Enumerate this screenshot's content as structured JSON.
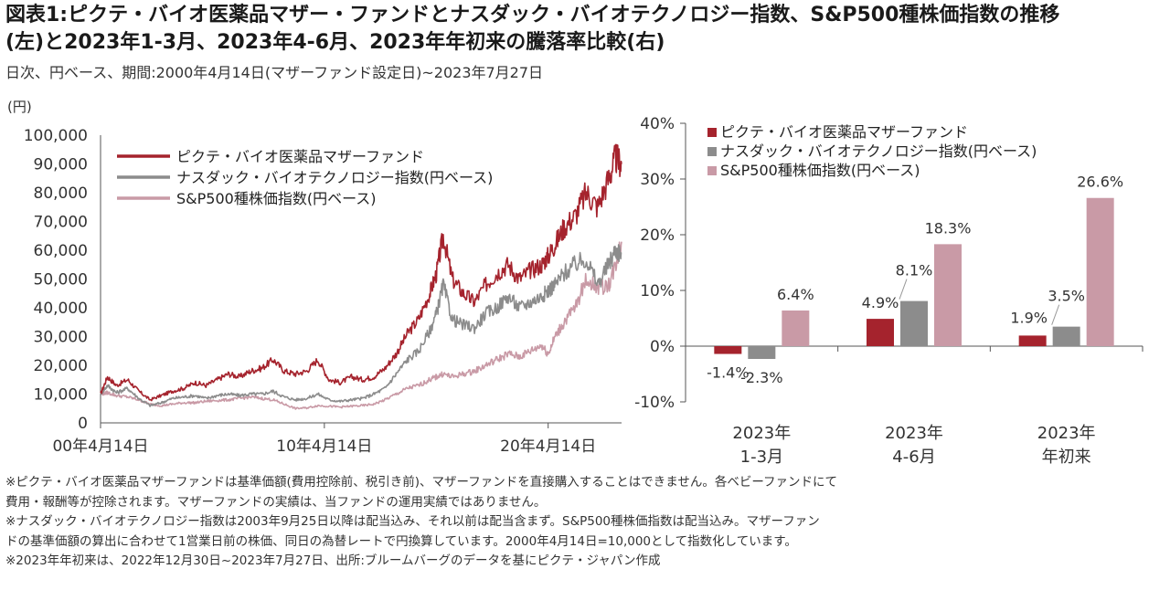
{
  "header": {
    "title_line1": "図表1:ピクテ・バイオ医薬品マザー・ファンドとナスダック・バイオテクノロジー指数、S&P500種株価指数の推移",
    "title_line2": "(左)と2023年1-3月、2023年4-6月、2023年年初来の騰落率比較(右)",
    "subtitle": "日次、円ベース、期間:2000年4月14日(マザーファンド設定日)~2023年7月27日"
  },
  "colors": {
    "fund": "#a5232d",
    "nasdaq": "#8c8c8c",
    "sp500": "#c99aa6",
    "axis": "#555555",
    "text": "#333333"
  },
  "chart_data": [
    {
      "type": "line",
      "ylabel": "(円)",
      "ylim": [
        0,
        100000
      ],
      "yticks": [
        "0",
        "10,000",
        "20,000",
        "30,000",
        "40,000",
        "50,000",
        "60,000",
        "70,000",
        "80,000",
        "90,000",
        "100,000"
      ],
      "xlim": [
        2000.29,
        2023.57
      ],
      "xticks": [
        {
          "x": 2000.29,
          "label": "00年4月14日"
        },
        {
          "x": 2010.29,
          "label": "10年4月14日"
        },
        {
          "x": 2020.29,
          "label": "20年4月14日"
        }
      ],
      "legend_position": "top-left",
      "series": [
        {
          "name": "ピクテ・バイオ医薬品マザーファンド",
          "x": [
            2000.29,
            2000.6,
            2001.0,
            2001.5,
            2002.0,
            2002.5,
            2003.0,
            2003.5,
            2004.0,
            2004.5,
            2005.0,
            2005.5,
            2006.0,
            2006.5,
            2007.0,
            2007.5,
            2008.0,
            2008.5,
            2009.0,
            2009.5,
            2010.0,
            2010.5,
            2011.0,
            2011.5,
            2012.0,
            2012.5,
            2013.0,
            2013.5,
            2014.0,
            2014.5,
            2015.0,
            2015.3,
            2015.6,
            2016.0,
            2016.5,
            2017.0,
            2017.5,
            2018.0,
            2018.5,
            2019.0,
            2019.5,
            2020.0,
            2020.29,
            2020.6,
            2021.0,
            2021.5,
            2022.0,
            2022.5,
            2023.0,
            2023.3,
            2023.57
          ],
          "y": [
            10000,
            16000,
            13000,
            15000,
            11000,
            8000,
            9500,
            11000,
            12000,
            14000,
            13000,
            15000,
            17000,
            16000,
            18000,
            19000,
            22000,
            18000,
            17000,
            18000,
            22000,
            15000,
            14000,
            16000,
            15000,
            16000,
            19000,
            24000,
            31000,
            36000,
            45000,
            52000,
            65000,
            50000,
            45000,
            42000,
            48000,
            52000,
            55000,
            50000,
            53000,
            55000,
            58000,
            62000,
            68000,
            72000,
            80000,
            75000,
            85000,
            92000,
            90000
          ]
        },
        {
          "name": "ナスダック・バイオテクノロジー指数(円ベース)",
          "x": [
            2000.29,
            2000.6,
            2001.0,
            2001.5,
            2002.0,
            2002.5,
            2003.0,
            2003.5,
            2004.0,
            2004.5,
            2005.0,
            2005.5,
            2006.0,
            2006.5,
            2007.0,
            2007.5,
            2008.0,
            2008.5,
            2009.0,
            2009.5,
            2010.0,
            2010.5,
            2011.0,
            2011.5,
            2012.0,
            2012.5,
            2013.0,
            2013.5,
            2014.0,
            2014.5,
            2015.0,
            2015.3,
            2015.6,
            2016.0,
            2016.5,
            2017.0,
            2017.5,
            2018.0,
            2018.5,
            2019.0,
            2019.5,
            2020.0,
            2020.29,
            2020.6,
            2021.0,
            2021.5,
            2022.0,
            2022.5,
            2023.0,
            2023.3,
            2023.57
          ],
          "y": [
            10000,
            13000,
            10500,
            12000,
            8500,
            6000,
            7000,
            8500,
            9000,
            9500,
            8500,
            9500,
            10000,
            9500,
            10000,
            10000,
            11000,
            9000,
            8000,
            8500,
            10000,
            8000,
            7500,
            8000,
            8500,
            10000,
            12000,
            17000,
            22000,
            25000,
            32000,
            38000,
            48000,
            36000,
            34000,
            33000,
            38000,
            40000,
            44000,
            40000,
            42000,
            44000,
            46000,
            48000,
            52000,
            55000,
            57000,
            48000,
            55000,
            60000,
            59000
          ]
        },
        {
          "name": "S&P500種株価指数(円ベース)",
          "x": [
            2000.29,
            2000.6,
            2001.0,
            2001.5,
            2002.0,
            2002.5,
            2003.0,
            2003.5,
            2004.0,
            2004.5,
            2005.0,
            2005.5,
            2006.0,
            2006.5,
            2007.0,
            2007.5,
            2008.0,
            2008.5,
            2009.0,
            2009.5,
            2010.0,
            2010.5,
            2011.0,
            2011.5,
            2012.0,
            2012.5,
            2013.0,
            2013.5,
            2014.0,
            2014.5,
            2015.0,
            2015.3,
            2015.6,
            2016.0,
            2016.5,
            2017.0,
            2017.5,
            2018.0,
            2018.5,
            2019.0,
            2019.5,
            2020.0,
            2020.29,
            2020.6,
            2021.0,
            2021.5,
            2022.0,
            2022.5,
            2023.0,
            2023.3,
            2023.57
          ],
          "y": [
            10000,
            10500,
            9500,
            9000,
            8000,
            6500,
            6000,
            6500,
            7000,
            7000,
            7500,
            7800,
            8000,
            8500,
            9000,
            8500,
            8000,
            6500,
            5000,
            5200,
            6000,
            5800,
            5500,
            5800,
            6000,
            6500,
            8000,
            10000,
            12000,
            13000,
            15000,
            16000,
            17000,
            16000,
            17000,
            18000,
            20000,
            22000,
            24000,
            23000,
            25000,
            27000,
            24000,
            30000,
            35000,
            40000,
            50000,
            47000,
            48000,
            55000,
            63000
          ]
        }
      ]
    },
    {
      "type": "bar",
      "ylim": [
        -10,
        40
      ],
      "yticks": [
        "-10%",
        "0%",
        "10%",
        "20%",
        "30%",
        "40%"
      ],
      "legend_position": "top",
      "categories": [
        [
          "2023年",
          "1-3月"
        ],
        [
          "2023年",
          "4-6月"
        ],
        [
          "2023年",
          "年初来"
        ]
      ],
      "series": [
        {
          "name": "ピクテ・バイオ医薬品マザーファンド",
          "values": [
            -1.4,
            4.9,
            1.9
          ],
          "labels": [
            "-1.4%",
            "4.9%",
            "1.9%"
          ]
        },
        {
          "name": "ナスダック・バイオテクノロジー指数(円ベース)",
          "values": [
            -2.3,
            8.1,
            3.5
          ],
          "labels": [
            "-2.3%",
            "8.1%",
            "3.5%"
          ]
        },
        {
          "name": "S&P500種株価指数(円ベース)",
          "values": [
            6.4,
            18.3,
            26.6
          ],
          "labels": [
            "6.4%",
            "18.3%",
            "26.6%"
          ]
        }
      ]
    }
  ],
  "notes": [
    "※ピクテ・バイオ医薬品マザーファンドは基準価額(費用控除前、税引き前)、マザーファンドを直接購入することはできません。各ベビーファンドにて",
    "費用・報酬等が控除されます。マザーファンドの実績は、当ファンドの運用実績ではありません。",
    "※ナスダック・バイオテクノロジー指数は2003年9月25日以降は配当込み、それ以前は配当含まず。S&P500種株価指数は配当込み。マザーファン",
    "ドの基準価額の算出に合わせて1営業日前の株価、同日の為替レートで円換算しています。2000年4月14日=10,000として指数化しています。",
    "※2023年年初来は、2022年12月30日~2023年7月27日、出所:ブルームバーグのデータを基にピクテ・ジャパン作成"
  ]
}
